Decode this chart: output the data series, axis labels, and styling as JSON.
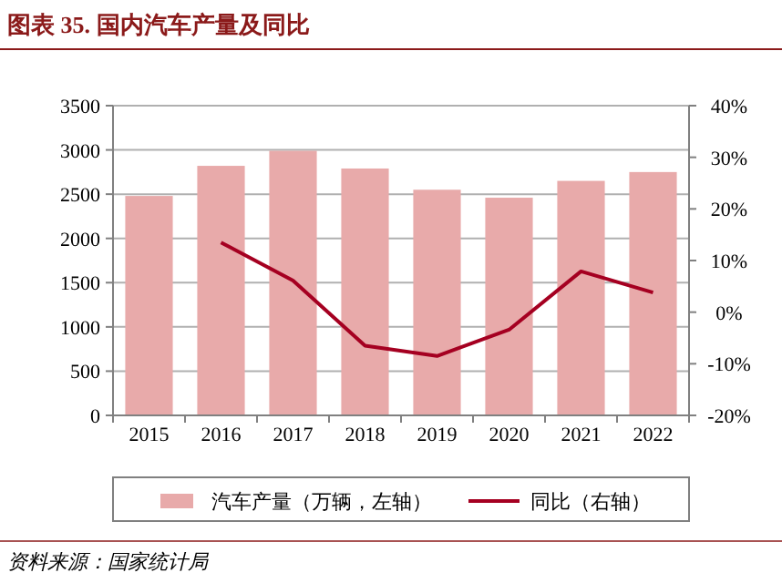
{
  "chart_data": {
    "type": "bar",
    "title": "图表 35. 国内汽车产量及同比",
    "categories": [
      "2015",
      "2016",
      "2017",
      "2018",
      "2019",
      "2020",
      "2021",
      "2022"
    ],
    "series": [
      {
        "name": "汽车产量（万辆，左轴）",
        "color": "#e8aaaa",
        "values": [
          2480,
          2820,
          2990,
          2790,
          2550,
          2460,
          2650,
          2750
        ]
      },
      {
        "name": "同比（右轴）",
        "type": "line",
        "axis": "y2",
        "color": "#a50021",
        "values": [
          null,
          13.5,
          6.1,
          -6.5,
          -8.5,
          -3.4,
          7.9,
          3.8
        ]
      }
    ],
    "ylim": [
      0,
      3500
    ],
    "yticks": [
      0,
      500,
      1000,
      1500,
      2000,
      2500,
      3000,
      3500
    ],
    "y2lim": [
      -20,
      40
    ],
    "y2ticks": [
      {
        "value": -20,
        "label": "-20%"
      },
      {
        "value": -10,
        "label": "-10%"
      },
      {
        "value": 0,
        "label": "0%"
      },
      {
        "value": 10,
        "label": "10%"
      },
      {
        "value": 20,
        "label": "20%"
      },
      {
        "value": 30,
        "label": "30%"
      },
      {
        "value": 40,
        "label": "40%"
      }
    ],
    "grid": "y",
    "legend": "bottom",
    "marker": "none",
    "annotations": [
      "资料来源：国家统计局"
    ]
  }
}
